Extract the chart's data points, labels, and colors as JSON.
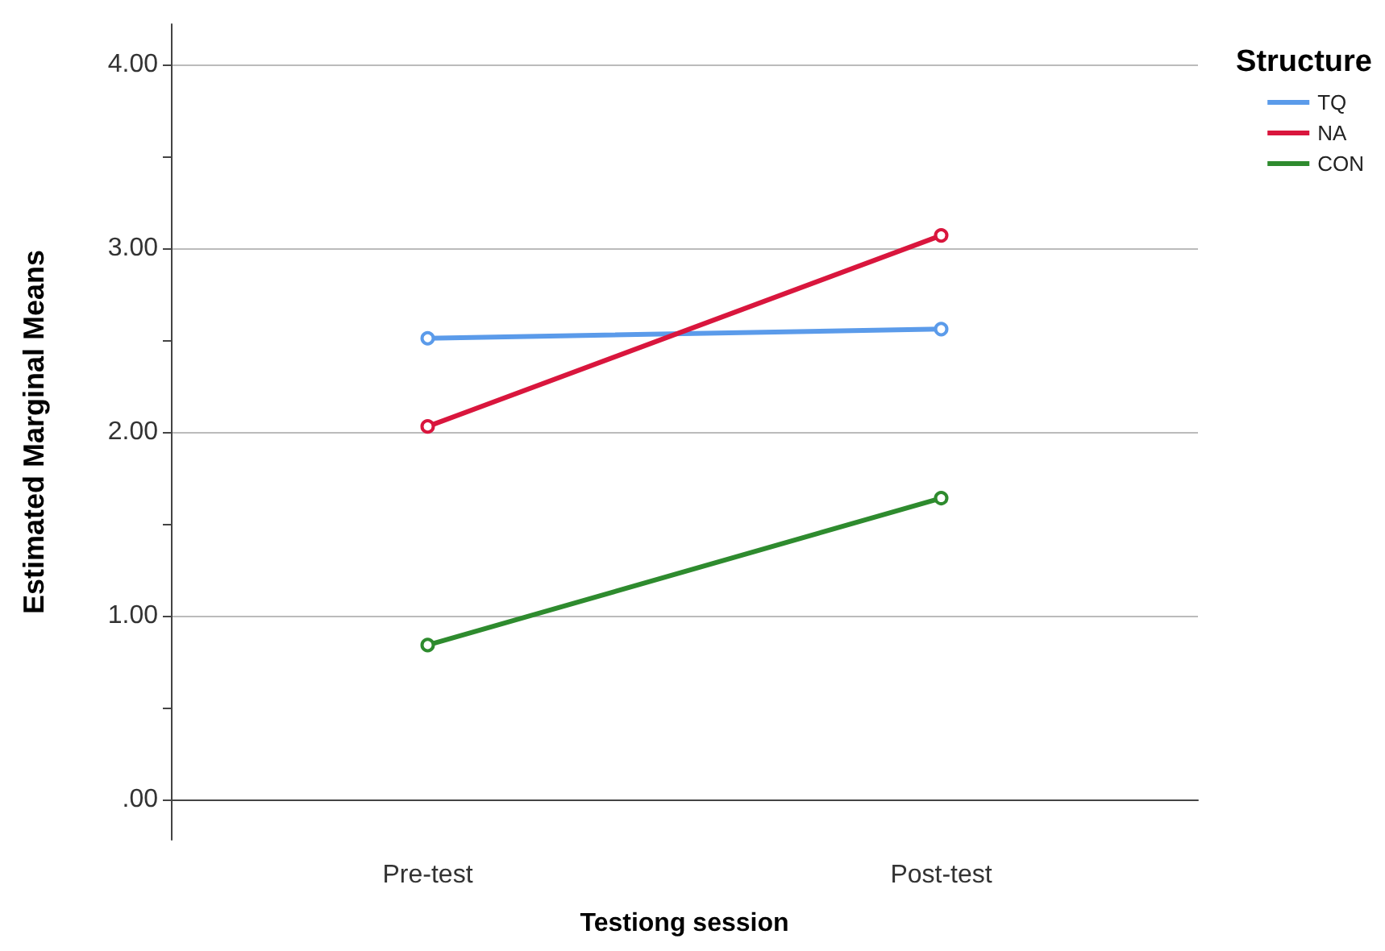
{
  "chart_data": {
    "type": "line",
    "xlabel": "Testiong session",
    "ylabel": "Estimated Marginal Means",
    "legend_title": "Structure",
    "categories": [
      "Pre-test",
      "Post-test"
    ],
    "series": [
      {
        "name": "TQ",
        "color": "#5b9bea",
        "values": [
          2.51,
          2.56
        ]
      },
      {
        "name": "NA",
        "color": "#d9163d",
        "values": [
          2.03,
          3.07
        ]
      },
      {
        "name": "CON",
        "color": "#2e8b2e",
        "values": [
          0.84,
          1.64
        ]
      }
    ],
    "ylim": [
      -0.22,
      4.22
    ],
    "yticks": [
      {
        "value": 0,
        "label": ".00"
      },
      {
        "value": 0.5,
        "label": null
      },
      {
        "value": 1,
        "label": "1.00"
      },
      {
        "value": 1.5,
        "label": null
      },
      {
        "value": 2,
        "label": "2.00"
      },
      {
        "value": 2.5,
        "label": null
      },
      {
        "value": 3,
        "label": "3.00"
      },
      {
        "value": 3.5,
        "label": null
      },
      {
        "value": 4,
        "label": "4.00"
      }
    ],
    "grid": "y",
    "legend": "top right",
    "marker": "circle",
    "line_style": "solid"
  }
}
